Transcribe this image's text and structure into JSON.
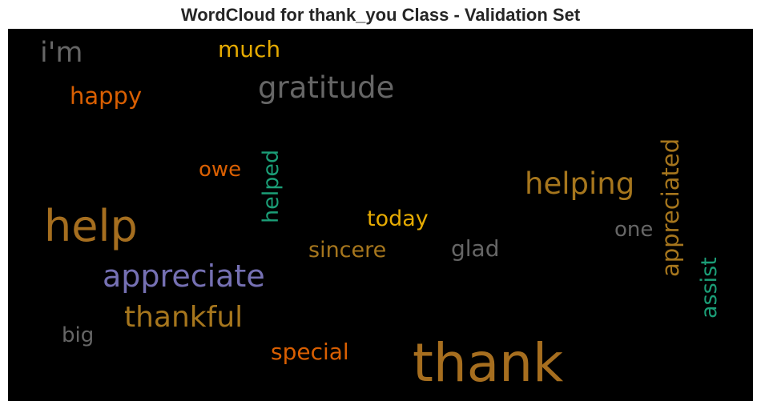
{
  "chart_data": {
    "type": "wordcloud",
    "title": "WordCloud for thank_you Class - Validation Set",
    "background": "#000000",
    "words": [
      {
        "text": "thank",
        "size": 66,
        "color": "#a66e1f",
        "orientation": "horizontal"
      },
      {
        "text": "help",
        "size": 54,
        "color": "#a56e1f",
        "orientation": "horizontal"
      },
      {
        "text": "appreciate",
        "size": 38,
        "color": "#7570b3",
        "orientation": "horizontal"
      },
      {
        "text": "gratitude",
        "size": 37,
        "color": "#666666",
        "orientation": "horizontal"
      },
      {
        "text": "helping",
        "size": 37,
        "color": "#a6761d",
        "orientation": "horizontal"
      },
      {
        "text": "thankful",
        "size": 36,
        "color": "#a6761d",
        "orientation": "horizontal"
      },
      {
        "text": "i'm",
        "size": 35,
        "color": "#666666",
        "orientation": "horizontal"
      },
      {
        "text": "appreciated",
        "size": 29,
        "color": "#a6761d",
        "orientation": "vertical"
      },
      {
        "text": "happy",
        "size": 29,
        "color": "#d95f02",
        "orientation": "horizontal"
      },
      {
        "text": "much",
        "size": 28,
        "color": "#e6ab02",
        "orientation": "horizontal"
      },
      {
        "text": "special",
        "size": 28,
        "color": "#d95f02",
        "orientation": "horizontal"
      },
      {
        "text": "today",
        "size": 27,
        "color": "#e6ab02",
        "orientation": "horizontal"
      },
      {
        "text": "sincere",
        "size": 27,
        "color": "#a6761d",
        "orientation": "horizontal"
      },
      {
        "text": "glad",
        "size": 28,
        "color": "#666666",
        "orientation": "horizontal"
      },
      {
        "text": "helped",
        "size": 27,
        "color": "#1b9e77",
        "orientation": "vertical"
      },
      {
        "text": "assist",
        "size": 27,
        "color": "#1b9e77",
        "orientation": "vertical"
      },
      {
        "text": "owe",
        "size": 26,
        "color": "#d95f02",
        "orientation": "horizontal"
      },
      {
        "text": "one",
        "size": 26,
        "color": "#666666",
        "orientation": "horizontal"
      },
      {
        "text": "big",
        "size": 26,
        "color": "#666666",
        "orientation": "horizontal"
      }
    ]
  }
}
